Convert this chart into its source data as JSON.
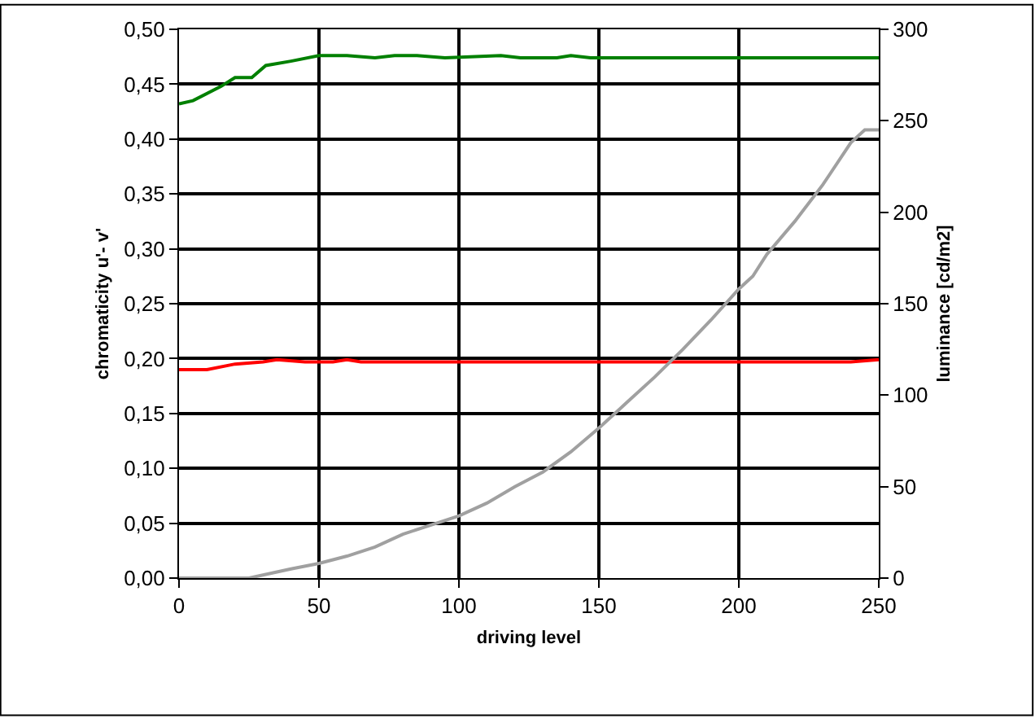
{
  "chart_data": {
    "type": "line",
    "xlabel": "driving level",
    "ylabel": "chromaticity u'- v'",
    "y2label": "luminance [cd/m2]",
    "xlim": [
      0,
      250
    ],
    "xticks": [
      0,
      50,
      100,
      150,
      200,
      250
    ],
    "ylim": [
      0,
      0.5
    ],
    "yticks": [
      {
        "value": 0,
        "label": "0,00"
      },
      {
        "value": 0.05,
        "label": "0,05"
      },
      {
        "value": 0.1,
        "label": "0,10"
      },
      {
        "value": 0.15,
        "label": "0,15"
      },
      {
        "value": 0.2,
        "label": "0,20"
      },
      {
        "value": 0.25,
        "label": "0,25"
      },
      {
        "value": 0.3,
        "label": "0,30"
      },
      {
        "value": 0.35,
        "label": "0,35"
      },
      {
        "value": 0.4,
        "label": "0,40"
      },
      {
        "value": 0.45,
        "label": "0,45"
      },
      {
        "value": 0.5,
        "label": "0,50"
      }
    ],
    "y2lim": [
      0,
      300
    ],
    "y2ticks": [
      0,
      50,
      100,
      150,
      200,
      250,
      300
    ],
    "grid": true,
    "marker": "none",
    "line_style": "solid",
    "series": [
      {
        "color": "#008000",
        "x": [
          0,
          5,
          15,
          20,
          26,
          31,
          40,
          50,
          60,
          70,
          77,
          85,
          95,
          115,
          122,
          135,
          140,
          147,
          250
        ],
        "values": [
          0.432,
          0.435,
          0.448,
          0.456,
          0.456,
          0.467,
          0.471,
          0.476,
          0.476,
          0.474,
          0.476,
          0.476,
          0.474,
          0.476,
          0.474,
          0.474,
          0.476,
          0.474,
          0.474
        ]
      },
      {
        "color": "#ff0000",
        "x": [
          0,
          10,
          20,
          30,
          35,
          45,
          55,
          60,
          65,
          240,
          250
        ],
        "values": [
          0.19,
          0.19,
          0.195,
          0.197,
          0.199,
          0.197,
          0.197,
          0.199,
          0.197,
          0.197,
          0.199
        ]
      },
      {
        "color": "#a0a0a0",
        "axis": "y2",
        "x": [
          0,
          25,
          40,
          50,
          60,
          70,
          80,
          90,
          100,
          110,
          120,
          130,
          140,
          150,
          160,
          170,
          180,
          190,
          200,
          205,
          210,
          220,
          230,
          240,
          245,
          250
        ],
        "values": [
          0,
          0,
          5,
          8,
          12,
          17,
          24,
          29,
          34,
          41,
          50,
          58,
          69,
          82,
          96,
          110,
          125,
          141,
          158,
          165,
          177,
          195,
          215,
          238,
          245,
          245
        ]
      }
    ]
  }
}
